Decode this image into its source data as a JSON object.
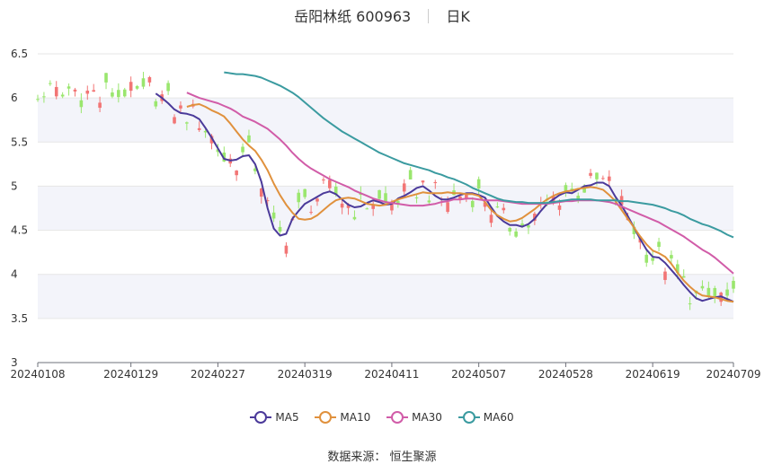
{
  "header": {
    "title": "岳阳林纸 600963",
    "period": "日K"
  },
  "source_label": "数据来源：  恒生聚源",
  "colors": {
    "up": "#f27575",
    "down": "#9ae66e",
    "ma5": "#4b3a9a",
    "ma10": "#e0913d",
    "ma30": "#d15ca8",
    "ma60": "#3b9ba0",
    "band": "#f3f4fa",
    "grid": "#e6e6e6"
  },
  "chart_data": {
    "type": "candlestick",
    "yaxis": {
      "min": 3,
      "max": 6.5,
      "ticks": [
        "3",
        "3.5",
        "4",
        "4.5",
        "5",
        "5.5",
        "6",
        "6.5"
      ]
    },
    "xaxis": {
      "ticks": [
        {
          "index": 0,
          "label": "20240108"
        },
        {
          "index": 15,
          "label": "20240129"
        },
        {
          "index": 29,
          "label": "20240227"
        },
        {
          "index": 43,
          "label": "20240319"
        },
        {
          "index": 57,
          "label": "20240411"
        },
        {
          "index": 71,
          "label": "20240507"
        },
        {
          "index": 85,
          "label": "20240528"
        },
        {
          "index": 99,
          "label": "20240619"
        },
        {
          "index": 112,
          "label": "20240709"
        }
      ]
    },
    "series": [
      {
        "name": "MA5",
        "values": [
          6.05,
          6.0,
          5.94,
          5.87,
          5.83,
          5.82,
          5.8,
          5.76,
          5.66,
          5.55,
          5.43,
          5.31,
          5.29,
          5.3,
          5.34,
          5.35,
          5.25,
          5.05,
          4.75,
          4.52,
          4.44,
          4.46,
          4.63,
          4.72,
          4.8,
          4.84,
          4.88,
          4.92,
          4.94,
          4.91,
          4.85,
          4.79,
          4.76,
          4.77,
          4.81,
          4.84,
          4.82,
          4.79,
          4.8,
          4.86,
          4.89,
          4.93,
          4.98,
          5.0,
          4.95,
          4.89,
          4.85,
          4.85,
          4.87,
          4.9,
          4.92,
          4.92,
          4.9,
          4.87,
          4.76,
          4.66,
          4.6,
          4.56,
          4.56,
          4.54,
          4.57,
          4.63,
          4.72,
          4.8,
          4.85,
          4.9,
          4.93,
          4.92,
          4.96,
          5.0,
          5.01,
          5.04,
          5.04,
          5.0,
          4.88,
          4.78,
          4.66,
          4.53,
          4.4,
          4.28,
          4.2,
          4.19,
          4.13,
          4.05,
          3.97,
          3.88,
          3.8,
          3.73,
          3.7,
          3.72,
          3.74,
          3.75,
          3.72,
          3.69
        ]
      },
      {
        "name": "MA10",
        "values": [
          5.9,
          5.92,
          5.93,
          5.9,
          5.86,
          5.83,
          5.79,
          5.71,
          5.62,
          5.53,
          5.46,
          5.4,
          5.3,
          5.18,
          5.03,
          4.9,
          4.79,
          4.7,
          4.63,
          4.62,
          4.63,
          4.67,
          4.73,
          4.79,
          4.84,
          4.86,
          4.87,
          4.86,
          4.83,
          4.8,
          4.79,
          4.78,
          4.79,
          4.82,
          4.85,
          4.87,
          4.89,
          4.91,
          4.93,
          4.92,
          4.92,
          4.92,
          4.93,
          4.92,
          4.92,
          4.91,
          4.91,
          4.89,
          4.82,
          4.73,
          4.67,
          4.63,
          4.6,
          4.61,
          4.64,
          4.69,
          4.74,
          4.8,
          4.85,
          4.89,
          4.92,
          4.94,
          4.95,
          4.97,
          4.98,
          4.99,
          4.98,
          4.96,
          4.9,
          4.83,
          4.73,
          4.63,
          4.53,
          4.43,
          4.34,
          4.27,
          4.24,
          4.2,
          4.12,
          4.02,
          3.93,
          3.86,
          3.8,
          3.76,
          3.75,
          3.74,
          3.72,
          3.7,
          3.69
        ]
      },
      {
        "name": "MA30",
        "values": [
          6.06,
          6.03,
          6.0,
          5.98,
          5.96,
          5.94,
          5.91,
          5.88,
          5.84,
          5.79,
          5.76,
          5.73,
          5.69,
          5.65,
          5.59,
          5.53,
          5.46,
          5.38,
          5.31,
          5.25,
          5.2,
          5.16,
          5.12,
          5.08,
          5.05,
          5.02,
          4.99,
          4.95,
          4.92,
          4.89,
          4.86,
          4.84,
          4.82,
          4.81,
          4.8,
          4.79,
          4.78,
          4.78,
          4.78,
          4.79,
          4.8,
          4.82,
          4.83,
          4.85,
          4.85,
          4.86,
          4.86,
          4.85,
          4.84,
          4.84,
          4.84,
          4.83,
          4.82,
          4.81,
          4.8,
          4.8,
          4.8,
          4.8,
          4.8,
          4.81,
          4.82,
          4.83,
          4.83,
          4.84,
          4.84,
          4.84,
          4.84,
          4.83,
          4.82,
          4.8,
          4.77,
          4.74,
          4.71,
          4.68,
          4.65,
          4.62,
          4.59,
          4.55,
          4.51,
          4.47,
          4.43,
          4.38,
          4.33,
          4.28,
          4.24,
          4.19,
          4.13,
          4.07,
          4.01
        ]
      },
      {
        "name": "MA60",
        "values": [
          6.29,
          6.28,
          6.27,
          6.27,
          6.26,
          6.25,
          6.23,
          6.2,
          6.17,
          6.14,
          6.1,
          6.06,
          6.01,
          5.95,
          5.89,
          5.83,
          5.77,
          5.72,
          5.67,
          5.62,
          5.58,
          5.54,
          5.5,
          5.46,
          5.42,
          5.38,
          5.35,
          5.32,
          5.29,
          5.26,
          5.24,
          5.22,
          5.2,
          5.18,
          5.15,
          5.13,
          5.1,
          5.08,
          5.05,
          5.02,
          4.98,
          4.95,
          4.92,
          4.89,
          4.86,
          4.84,
          4.83,
          4.82,
          4.82,
          4.81,
          4.81,
          4.81,
          4.81,
          4.82,
          4.83,
          4.84,
          4.85,
          4.85,
          4.85,
          4.85,
          4.84,
          4.84,
          4.84,
          4.84,
          4.83,
          4.83,
          4.82,
          4.81,
          4.8,
          4.79,
          4.77,
          4.75,
          4.72,
          4.7,
          4.67,
          4.63,
          4.6,
          4.57,
          4.55,
          4.52,
          4.49,
          4.45,
          4.42
        ]
      }
    ]
  }
}
